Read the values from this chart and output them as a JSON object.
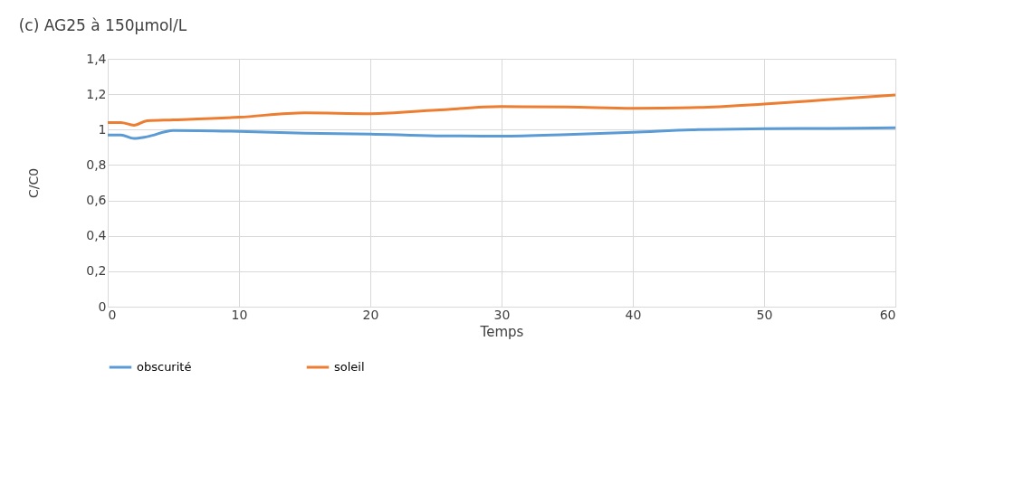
{
  "chart_data": {
    "type": "line",
    "title": "(c)          AG25 à 150µmol/L",
    "xlabel": "Temps",
    "ylabel": "C/C0",
    "x": [
      0,
      1,
      2,
      3,
      5,
      10,
      15,
      20,
      25,
      30,
      35,
      40,
      45,
      50,
      55,
      60
    ],
    "series": [
      {
        "name": "obscurité",
        "color": "#5b9bd5",
        "values": [
          0.97,
          0.97,
          0.95,
          0.96,
          0.995,
          0.99,
          0.98,
          0.975,
          0.965,
          0.963,
          0.972,
          0.985,
          1.0,
          1.005,
          1.007,
          1.01
        ]
      },
      {
        "name": "soleil",
        "color": "#ed7d31",
        "values": [
          1.04,
          1.04,
          1.025,
          1.05,
          1.055,
          1.07,
          1.095,
          1.09,
          1.11,
          1.13,
          1.128,
          1.12,
          1.125,
          1.145,
          1.17,
          1.195
        ]
      }
    ],
    "xlim": [
      0,
      60
    ],
    "xticks": [
      0,
      10,
      20,
      30,
      40,
      50,
      60
    ],
    "ylim": [
      0,
      1.4
    ],
    "yticks": [
      0,
      {
        "value": 0.2,
        "label": "0,2"
      },
      {
        "value": 0.4,
        "label": "0,4"
      },
      {
        "value": 0.6,
        "label": "0,6"
      },
      {
        "value": 0.8,
        "label": "0,8"
      },
      1,
      {
        "value": 1.2,
        "label": "1,2"
      },
      {
        "value": 1.4,
        "label": "1,4"
      }
    ],
    "grid": true,
    "legend": "bottom",
    "marker": "none",
    "line_style": "solid"
  }
}
